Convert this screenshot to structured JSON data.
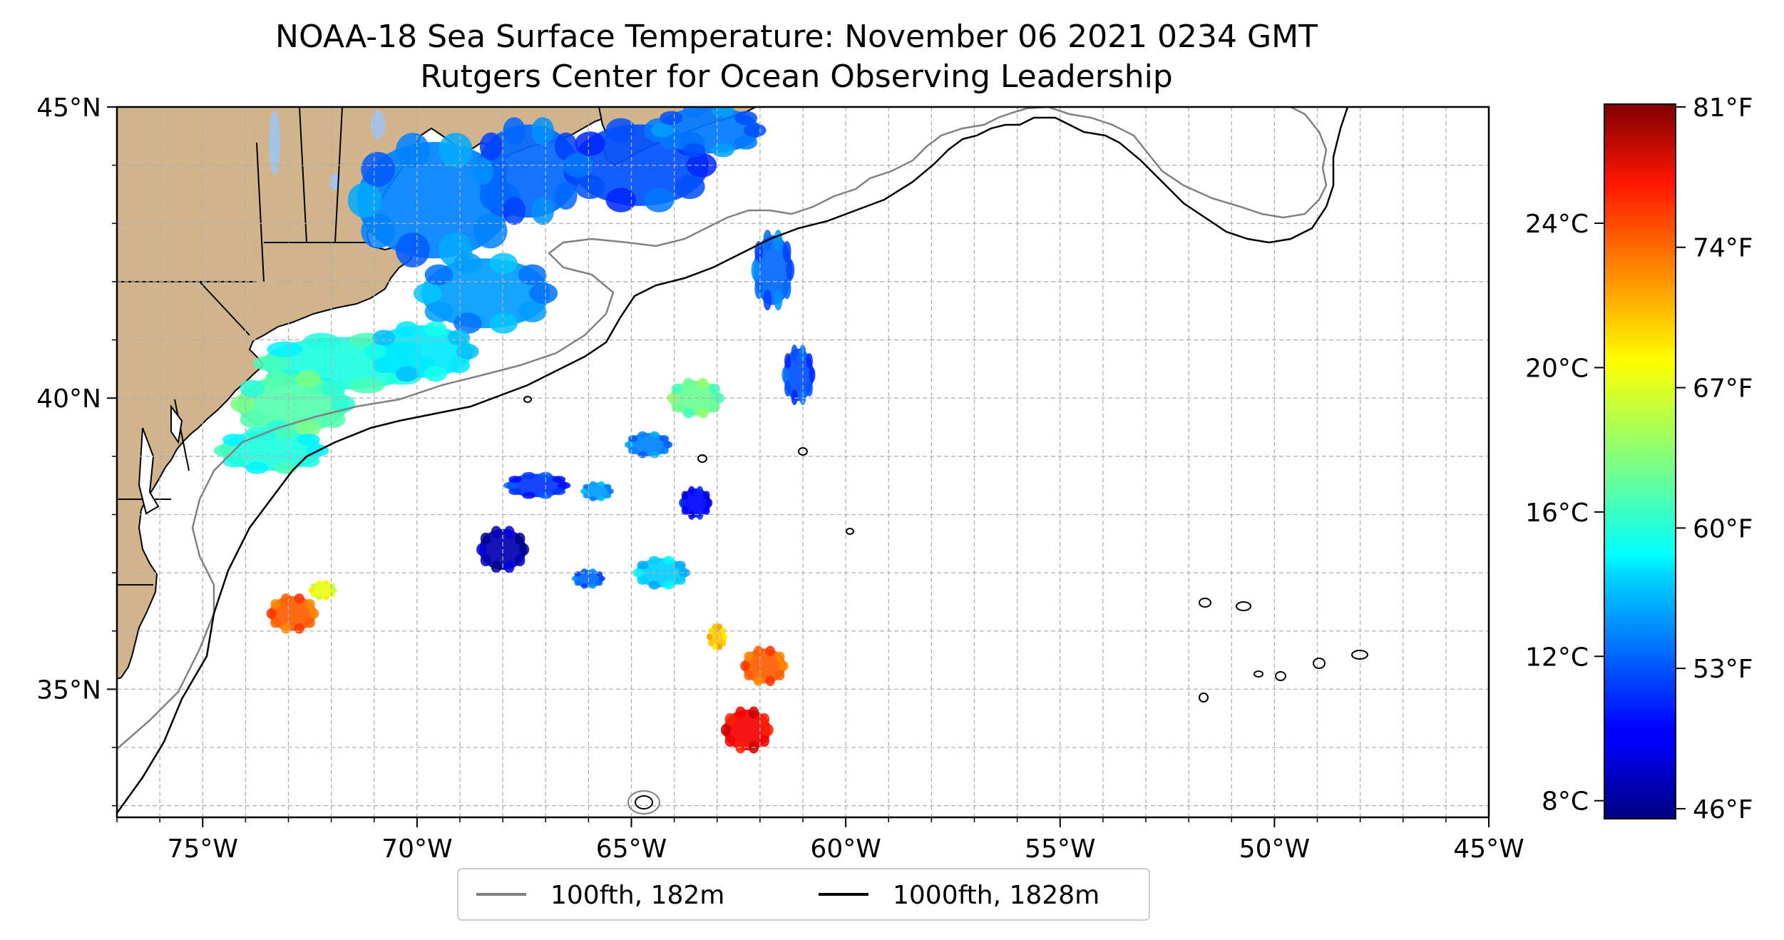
{
  "title": {
    "line1": "NOAA-18 Sea Surface Temperature: November 06 2021 0234 GMT",
    "line2": "Rutgers Center for Ocean Observing Leadership"
  },
  "map": {
    "lon_range": [
      -77,
      -45
    ],
    "lat_range": [
      32.8,
      45
    ],
    "lon_ticks": [
      {
        "value": -75,
        "label": "75°W"
      },
      {
        "value": -70,
        "label": "70°W"
      },
      {
        "value": -65,
        "label": "65°W"
      },
      {
        "value": -60,
        "label": "60°W"
      },
      {
        "value": -55,
        "label": "55°W"
      },
      {
        "value": -50,
        "label": "50°W"
      },
      {
        "value": -45,
        "label": "45°W"
      }
    ],
    "lat_ticks": [
      {
        "value": 45,
        "label": "45°N"
      },
      {
        "value": 40,
        "label": "40°N"
      },
      {
        "value": 35,
        "label": "35°N"
      }
    ],
    "grid": true,
    "grid_lon_step": 1,
    "grid_lat_step": 1,
    "colors": {
      "land": "#d2b48c",
      "lakes": "#a6c3e6",
      "isobath_100": "#808080",
      "isobath_1000": "#000000"
    }
  },
  "legend": {
    "placement": "bottom-center",
    "entries": [
      {
        "label": "100fth, 182m",
        "color": "#808080"
      },
      {
        "label": "1000fth, 1828m",
        "color": "#000000"
      }
    ]
  },
  "colorbar": {
    "colormap": "jet",
    "range_c": [
      7.5,
      27.3
    ],
    "celsius_ticks": [
      {
        "value": 8,
        "label": "8°C"
      },
      {
        "value": 12,
        "label": "12°C"
      },
      {
        "value": 16,
        "label": "16°C"
      },
      {
        "value": 20,
        "label": "20°C"
      },
      {
        "value": 24,
        "label": "24°C"
      }
    ],
    "fahrenheit_ticks": [
      {
        "value": 46,
        "label": "46°F"
      },
      {
        "value": 53,
        "label": "53°F"
      },
      {
        "value": 60,
        "label": "60°F"
      },
      {
        "value": 67,
        "label": "67°F"
      },
      {
        "value": 74,
        "label": "74°F"
      },
      {
        "value": 81,
        "label": "81°F"
      }
    ]
  },
  "sst_patches": [
    {
      "region": "gulf-of-maine",
      "lon": -69.6,
      "lat": 43.4,
      "rx": 1.8,
      "ry": 1.0,
      "temp_c": 12.5
    },
    {
      "region": "gulf-of-maine-east",
      "lon": -67.4,
      "lat": 43.9,
      "rx": 1.2,
      "ry": 0.8,
      "temp_c": 12.0
    },
    {
      "region": "scotian-shelf",
      "lon": -64.8,
      "lat": 44.0,
      "rx": 1.6,
      "ry": 0.7,
      "temp_c": 11.5
    },
    {
      "region": "nova-scotia-coast",
      "lon": -63.2,
      "lat": 44.6,
      "rx": 1.2,
      "ry": 0.4,
      "temp_c": 12.3
    },
    {
      "region": "georges-bank",
      "lon": -68.4,
      "lat": 41.8,
      "rx": 1.5,
      "ry": 0.6,
      "temp_c": 13.0
    },
    {
      "region": "long-island-shelf",
      "lon": -71.7,
      "lat": 40.6,
      "rx": 1.9,
      "ry": 0.45,
      "temp_c": 15.5
    },
    {
      "region": "new-jersey-shelf",
      "lon": -72.9,
      "lat": 39.9,
      "rx": 1.3,
      "ry": 0.5,
      "temp_c": 16.5
    },
    {
      "region": "delmarva-shelf",
      "lon": -73.4,
      "lat": 39.1,
      "rx": 1.2,
      "ry": 0.35,
      "temp_c": 15.5
    },
    {
      "region": "southern-new-england-shelf",
      "lon": -69.9,
      "lat": 40.8,
      "rx": 1.2,
      "ry": 0.45,
      "temp_c": 14.5
    },
    {
      "region": "offshore-a",
      "lon": -61.7,
      "lat": 42.2,
      "rx": 0.45,
      "ry": 0.6,
      "temp_c": 12.0
    },
    {
      "region": "offshore-b",
      "lon": -61.1,
      "lat": 40.4,
      "rx": 0.35,
      "ry": 0.45,
      "temp_c": 11.5
    },
    {
      "region": "offshore-c",
      "lon": -63.5,
      "lat": 40.0,
      "rx": 0.6,
      "ry": 0.3,
      "temp_c": 17.0
    },
    {
      "region": "offshore-d",
      "lon": -68.0,
      "lat": 37.4,
      "rx": 0.55,
      "ry": 0.35,
      "temp_c": 8.5
    },
    {
      "region": "offshore-e",
      "lon": -67.2,
      "lat": 38.5,
      "rx": 0.7,
      "ry": 0.2,
      "temp_c": 11.0
    },
    {
      "region": "offshore-f",
      "lon": -64.6,
      "lat": 39.2,
      "rx": 0.5,
      "ry": 0.2,
      "temp_c": 12.5
    },
    {
      "region": "offshore-g",
      "lon": -63.5,
      "lat": 38.2,
      "rx": 0.35,
      "ry": 0.25,
      "temp_c": 10.0
    },
    {
      "region": "offshore-h",
      "lon": -64.3,
      "lat": 37.0,
      "rx": 0.6,
      "ry": 0.25,
      "temp_c": 14.0
    },
    {
      "region": "warm-core-west",
      "lon": -72.9,
      "lat": 36.3,
      "rx": 0.55,
      "ry": 0.3,
      "temp_c": 23.0
    },
    {
      "region": "warm-core-west-edge",
      "lon": -72.2,
      "lat": 36.7,
      "rx": 0.3,
      "ry": 0.15,
      "temp_c": 19.5
    },
    {
      "region": "gulf-stream-meander",
      "lon": -62.3,
      "lat": 34.3,
      "rx": 0.55,
      "ry": 0.35,
      "temp_c": 25.0
    },
    {
      "region": "gulf-stream-north",
      "lon": -61.9,
      "lat": 35.4,
      "rx": 0.5,
      "ry": 0.3,
      "temp_c": 23.0
    },
    {
      "region": "gulf-stream-patch",
      "lon": -63.0,
      "lat": 35.9,
      "rx": 0.2,
      "ry": 0.2,
      "temp_c": 21.0
    },
    {
      "region": "offshore-i",
      "lon": -65.8,
      "lat": 38.4,
      "rx": 0.35,
      "ry": 0.15,
      "temp_c": 13.0
    },
    {
      "region": "offshore-j",
      "lon": -66.0,
      "lat": 36.9,
      "rx": 0.35,
      "ry": 0.15,
      "temp_c": 12.0
    }
  ]
}
